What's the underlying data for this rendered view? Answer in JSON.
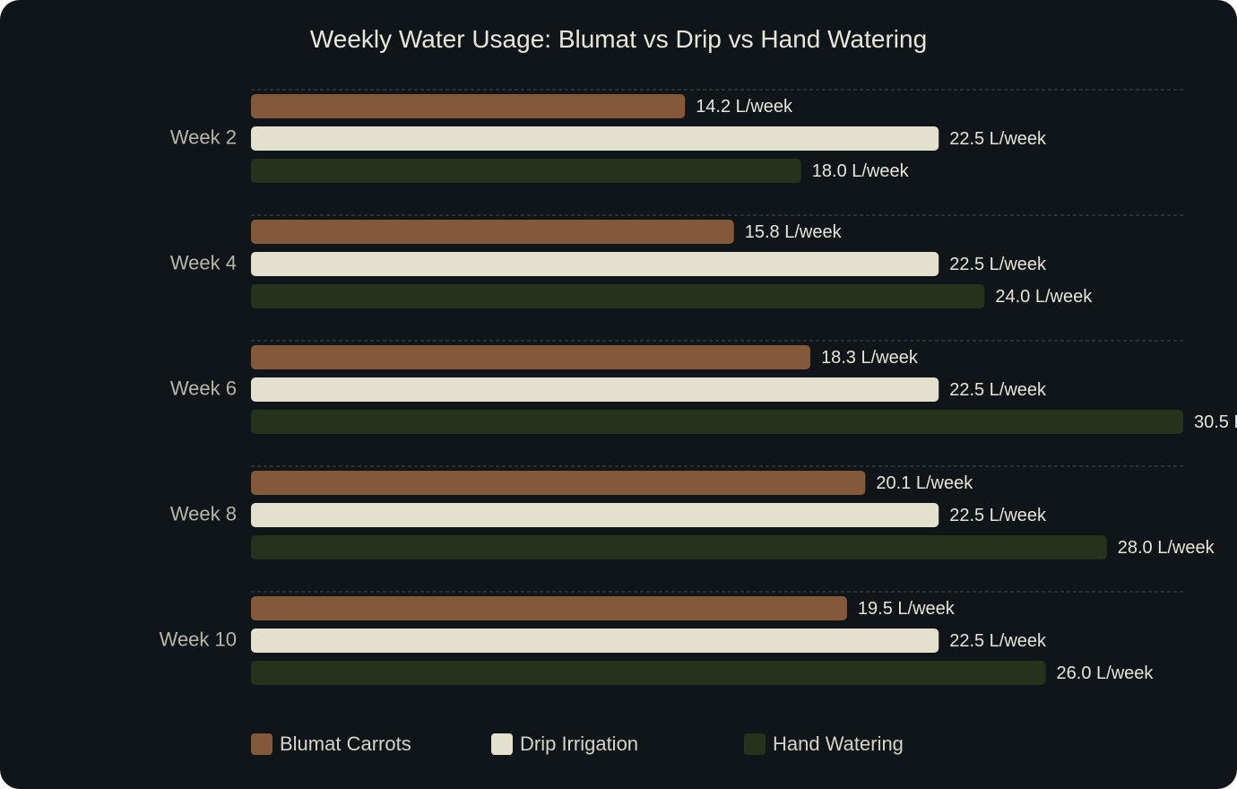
{
  "chart_data": {
    "type": "bar",
    "orientation": "horizontal",
    "title": "Weekly Water Usage: Blumat vs Drip vs Hand Watering",
    "xlabel": "",
    "ylabel": "",
    "categories": [
      "Week 2",
      "Week 4",
      "Week 6",
      "Week 8",
      "Week 10"
    ],
    "value_suffix": " L/week",
    "xlim": [
      0,
      30.5
    ],
    "grid": "dashed separators between groups",
    "legend_position": "bottom",
    "series": [
      {
        "name": "Blumat Carrots",
        "color": "#84593a",
        "values": [
          14.2,
          15.8,
          18.3,
          20.1,
          19.5
        ]
      },
      {
        "name": "Drip Irrigation",
        "color": "#e3e1cd",
        "values": [
          22.5,
          22.5,
          22.5,
          22.5,
          22.5
        ]
      },
      {
        "name": "Hand Watering",
        "color": "#27311c",
        "values": [
          18.0,
          24.0,
          30.5,
          28.0,
          26.0
        ]
      }
    ]
  },
  "colors": {
    "background": "#10151a",
    "text": "#e8e6da",
    "axis_label": "#b8b6aa",
    "grid": "#3a4048"
  }
}
